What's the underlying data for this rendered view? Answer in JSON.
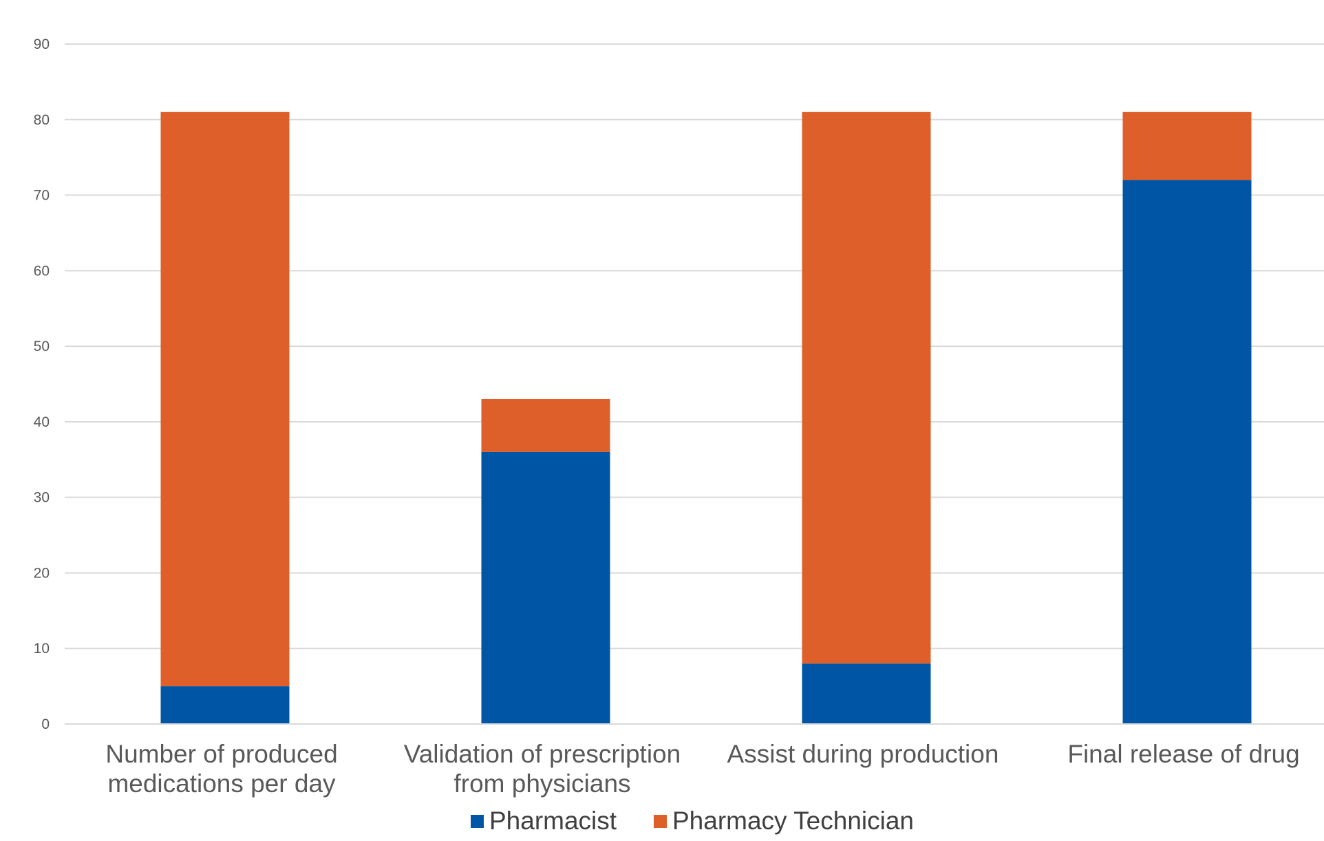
{
  "chart_data": {
    "type": "bar",
    "stacked": true,
    "categories": [
      [
        "Number of produced",
        "medications per day"
      ],
      [
        "Validation of prescription",
        "from physicians"
      ],
      [
        "Assist during production"
      ],
      [
        "Final release of drug"
      ]
    ],
    "series": [
      {
        "name": "Pharmacist",
        "color": "#0055A5",
        "values": [
          5,
          36,
          8,
          72
        ]
      },
      {
        "name": "Pharmacy Technician",
        "color": "#DE5F29",
        "values": [
          76,
          7,
          73,
          9
        ]
      }
    ],
    "title": "",
    "xlabel": "",
    "ylabel": "",
    "ylim": [
      0,
      90
    ],
    "yticks": [
      "0",
      "10",
      "20",
      "30",
      "40",
      "50",
      "60",
      "70",
      "80",
      "90"
    ],
    "grid": true,
    "legend": "bottom"
  }
}
